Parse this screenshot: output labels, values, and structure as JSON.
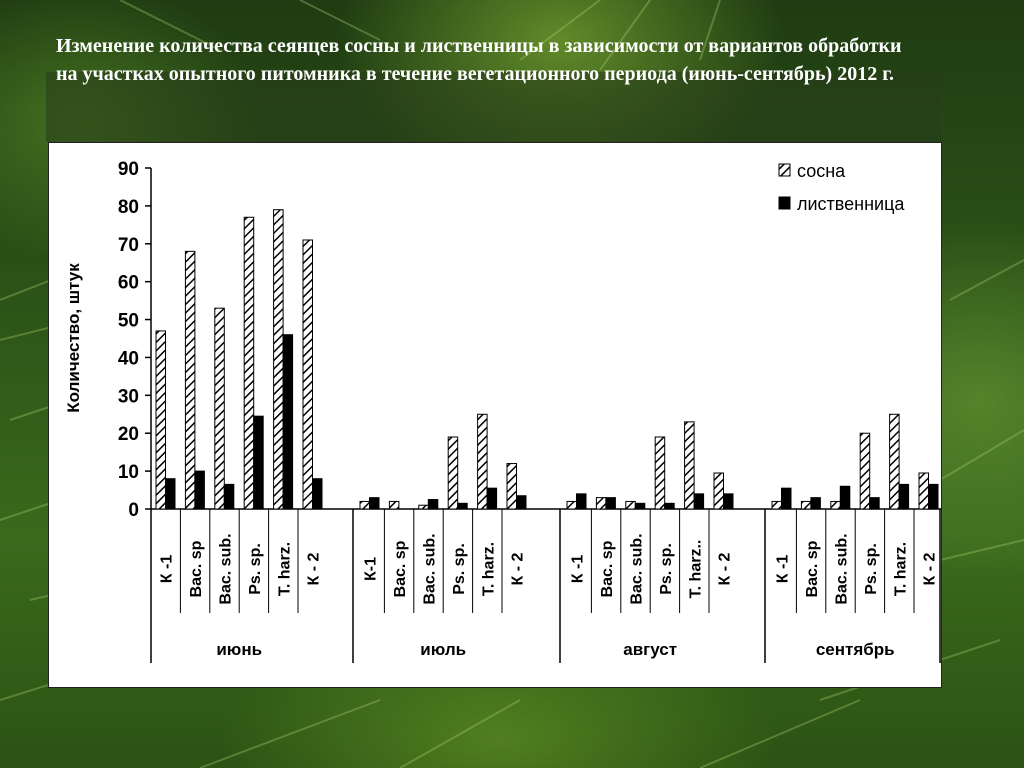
{
  "slide": {
    "title": "Изменение количества сеянцев сосны и лиственницы в зависимости от вариантов обработки на участках опытного питомника в течение вегетационного периода (июнь-сентябрь) 2012 г."
  },
  "chart_data": {
    "type": "bar",
    "title": "",
    "ylabel": "Количество,  штук",
    "xlabel": "",
    "ylim": [
      0,
      90
    ],
    "yticks": [
      0,
      10,
      20,
      30,
      40,
      50,
      60,
      70,
      80,
      90
    ],
    "legend_position": "top-right",
    "groups": [
      {
        "label": "июнь",
        "categories": [
          "К -1",
          "Bac. sp",
          "Bac. sub.",
          "Ps. sp.",
          "T. harz.",
          "К - 2"
        ]
      },
      {
        "label": "июль",
        "categories": [
          "К-1",
          "Bac. sp",
          "Bac. sub.",
          "Ps. sp.",
          "T. harz.",
          "К - 2"
        ]
      },
      {
        "label": "август",
        "categories": [
          "К -1",
          "Bac. sp",
          "Bac. sub.",
          "Ps. sp.",
          "T. harz..",
          "К - 2"
        ]
      },
      {
        "label": "сентябрь",
        "categories": [
          "К -1",
          "Bac. sp",
          "Bac. sub.",
          "Ps. sp.",
          "T. harz.",
          "К - 2"
        ]
      }
    ],
    "series": [
      {
        "name": "сосна",
        "pattern": "hatched",
        "values": [
          47,
          68,
          53,
          77,
          79,
          71,
          2,
          2,
          1,
          19,
          25,
          12,
          2,
          3,
          2,
          19,
          23,
          9.5,
          2,
          2,
          2,
          20,
          25,
          9.5
        ]
      },
      {
        "name": "лиственница",
        "pattern": "solid",
        "values": [
          8,
          10,
          6.5,
          24.5,
          46,
          8,
          3,
          0,
          2.5,
          1.5,
          5.5,
          3.5,
          4,
          3,
          1.5,
          1.5,
          4,
          4,
          5.5,
          3,
          6,
          3,
          6.5,
          6.5
        ]
      }
    ],
    "colors": {
      "sosna_fill": "#ffffff",
      "sosna_hatch": "#000000",
      "listv_fill": "#000000"
    }
  }
}
